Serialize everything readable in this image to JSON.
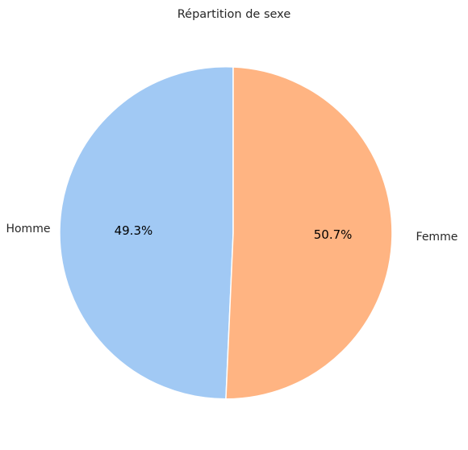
{
  "chart_data": {
    "type": "pie",
    "title": "Répartition de sexe",
    "labels": [
      "Femme",
      "Homme"
    ],
    "values": [
      50.7,
      49.3
    ],
    "value_labels": [
      "50.7%",
      "49.3%"
    ],
    "colors": [
      "#a1c9f4",
      "#ffb482"
    ],
    "start_angle_deg": 90,
    "direction": "counterclockwise",
    "legend": "none"
  }
}
